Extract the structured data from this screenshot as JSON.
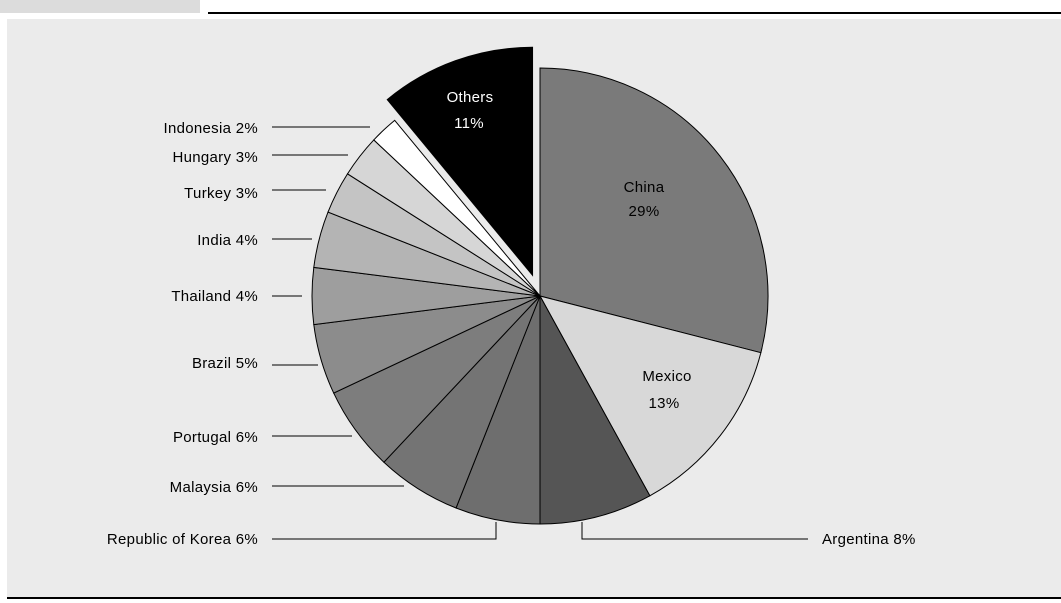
{
  "chart_data": {
    "type": "pie",
    "title": "",
    "slices": [
      {
        "label": "China",
        "value": 29,
        "display": "29%",
        "color": "#7a7a7a",
        "label_inside": true,
        "text_color": "#000000"
      },
      {
        "label": "Mexico",
        "value": 13,
        "display": "13%",
        "color": "#d8d8d8",
        "label_inside": true,
        "text_color": "#000000"
      },
      {
        "label": "Argentina",
        "value": 8,
        "display": "Argentina 8%",
        "color": "#555555",
        "label_inside": false
      },
      {
        "label": "Republic of Korea",
        "value": 6,
        "display": "Republic of Korea 6%",
        "color": "#6e6e6e",
        "label_inside": false
      },
      {
        "label": "Malaysia",
        "value": 6,
        "display": "Malaysia 6%",
        "color": "#747474",
        "label_inside": false
      },
      {
        "label": "Portugal",
        "value": 6,
        "display": "Portugal 6%",
        "color": "#7d7d7d",
        "label_inside": false
      },
      {
        "label": "Brazil",
        "value": 5,
        "display": "Brazil 5%",
        "color": "#8c8c8c",
        "label_inside": false
      },
      {
        "label": "Thailand",
        "value": 4,
        "display": "Thailand 4%",
        "color": "#9e9e9e",
        "label_inside": false
      },
      {
        "label": "India",
        "value": 4,
        "display": "India 4%",
        "color": "#b4b4b4",
        "label_inside": false
      },
      {
        "label": "Turkey",
        "value": 3,
        "display": "Turkey 3%",
        "color": "#c4c4c4",
        "label_inside": false
      },
      {
        "label": "Hungary",
        "value": 3,
        "display": "Hungary 3%",
        "color": "#d6d6d6",
        "label_inside": false
      },
      {
        "label": "Indonesia",
        "value": 2,
        "display": "Indonesia 2%",
        "color": "#ffffff",
        "label_inside": false
      },
      {
        "label": "Others",
        "value": 11,
        "display": "11%",
        "color": "#000000",
        "label_inside": true,
        "text_color": "#ffffff",
        "exploded": true
      }
    ],
    "legend": "none",
    "label_style": "leader-lines"
  }
}
